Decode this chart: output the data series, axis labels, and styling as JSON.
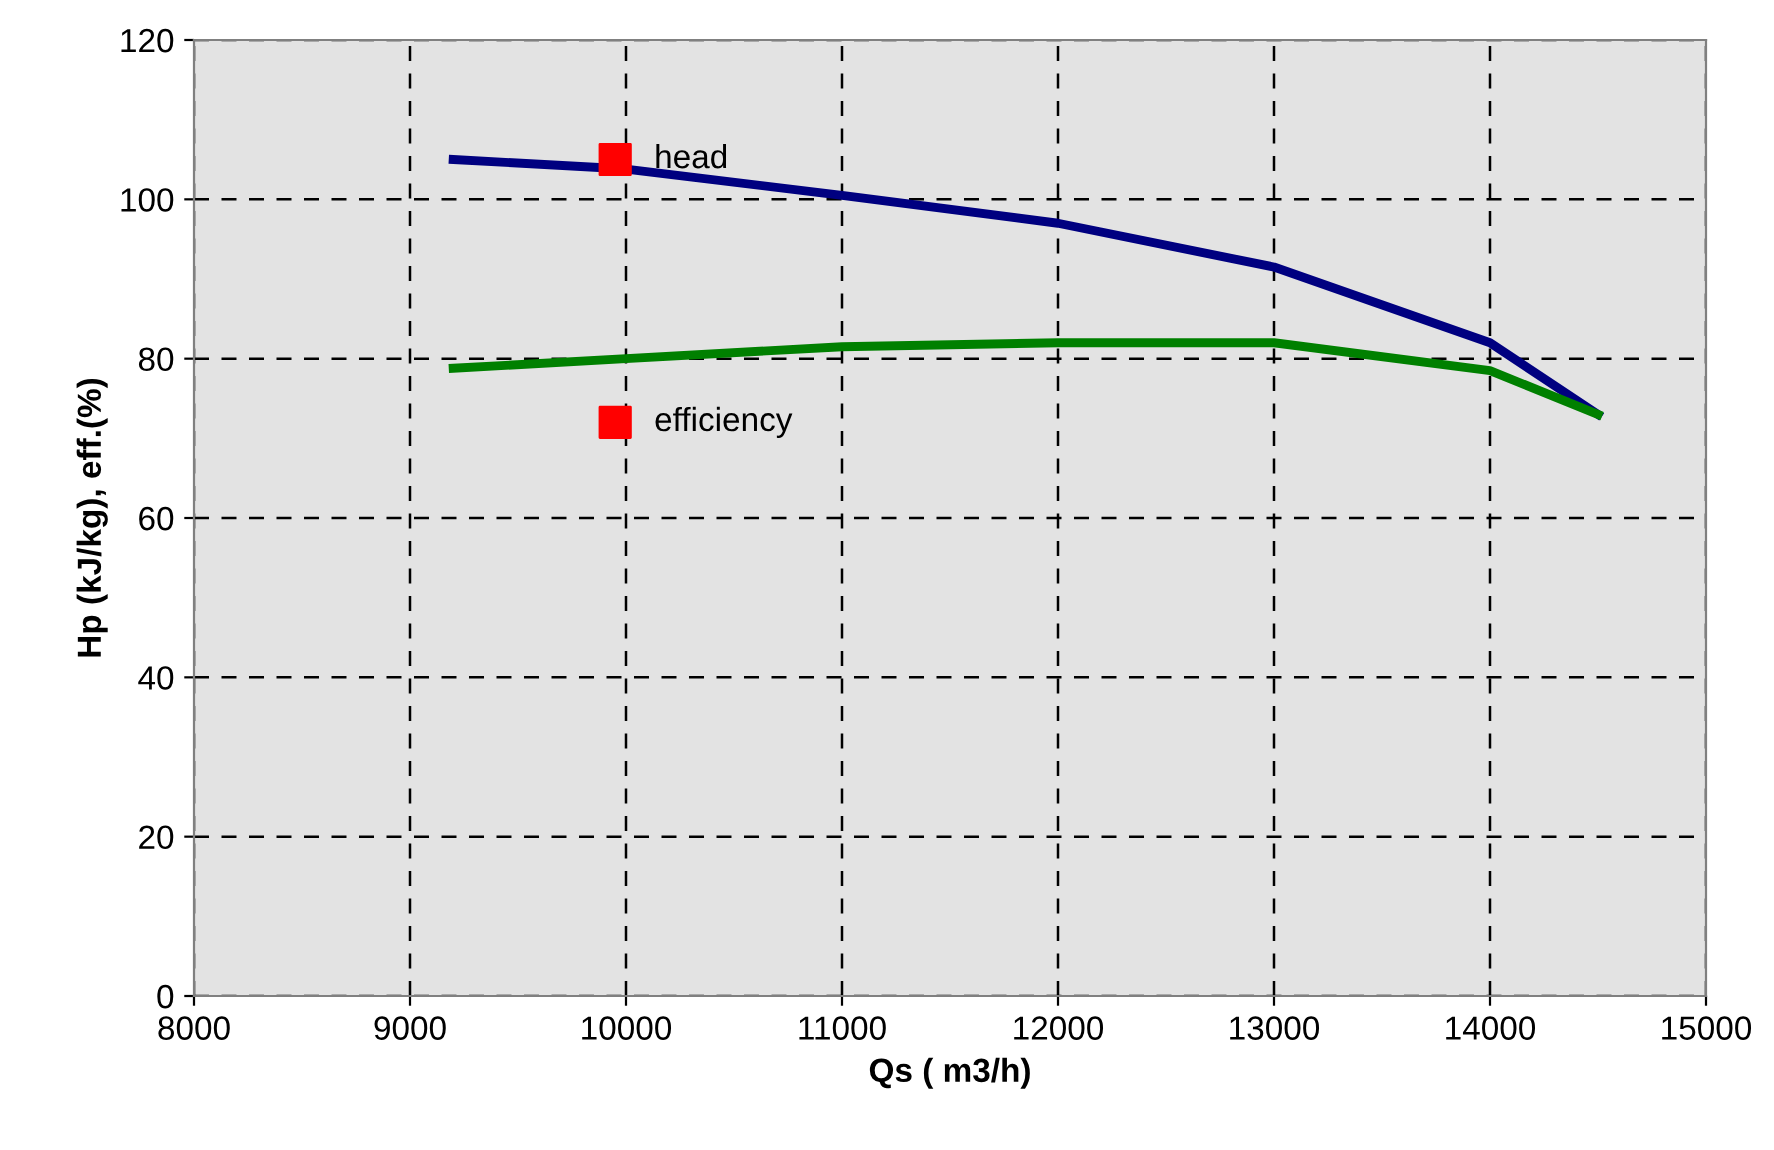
{
  "chart_data": {
    "type": "line",
    "xlabel": "Qs ( m3/h)",
    "ylabel": "Hp (kJ/kg), eff.(%)",
    "x": [
      9200,
      10000,
      11000,
      12000,
      13000,
      14000,
      14500
    ],
    "series": [
      {
        "color": "#000080",
        "values": [
          105,
          103.8,
          100.5,
          97,
          91.5,
          82,
          73
        ]
      },
      {
        "color": "#008000",
        "values": [
          78.8,
          80,
          81.5,
          82,
          82,
          78.5,
          73
        ]
      },
      {
        "type": "scatter",
        "marker": "square",
        "color": "#ff0000",
        "x": [
          9950,
          9950
        ],
        "values": [
          105,
          72
        ]
      }
    ],
    "annotations": [
      {
        "text": "head",
        "x": 9950,
        "y": 105
      },
      {
        "text": "efficiency",
        "x": 9950,
        "y": 72
      }
    ],
    "xlim": [
      8000,
      15000
    ],
    "xticks": [
      8000,
      9000,
      10000,
      11000,
      12000,
      13000,
      14000,
      15000
    ],
    "ylim": [
      0,
      120
    ],
    "yticks": [
      0,
      20,
      40,
      60,
      80,
      100,
      120
    ],
    "grid": true,
    "line_style": "solid",
    "marker": "none"
  }
}
